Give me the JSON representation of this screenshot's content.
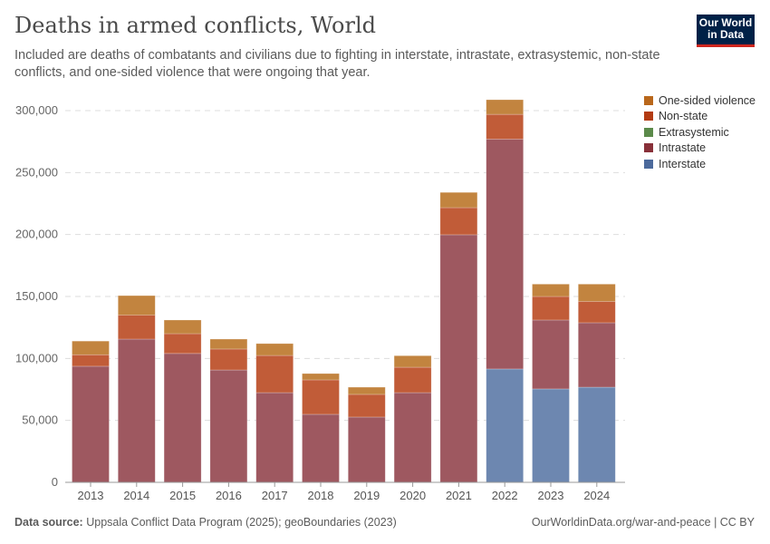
{
  "header": {
    "title": "Deaths in armed conflicts, World",
    "subtitle": "Included are deaths of combatants and civilians due to fighting in interstate, intrastate, extrasystemic, non-state conflicts, and one-sided violence that were ongoing that year.",
    "logo": "Our World in Data"
  },
  "footer": {
    "source_label": "Data source:",
    "source": "Uppsala Conflict Data Program (2025); geoBoundaries (2023)",
    "link": "OurWorldinData.org/war-and-peace | CC BY"
  },
  "chart_data": {
    "type": "bar",
    "stacked": true,
    "categories": [
      "2013",
      "2014",
      "2015",
      "2016",
      "2017",
      "2018",
      "2019",
      "2020",
      "2021",
      "2022",
      "2023",
      "2024"
    ],
    "ylim": [
      0,
      300000
    ],
    "yticks": [
      0,
      50000,
      100000,
      150000,
      200000,
      250000,
      300000
    ],
    "ytick_labels": [
      "0",
      "50,000",
      "100,000",
      "150,000",
      "200,000",
      "250,000",
      "300,000"
    ],
    "grid": true,
    "legend_position": "top-right",
    "series": [
      {
        "name": "Interstate",
        "color": "#6d87b0",
        "values": [
          0,
          0,
          0,
          0,
          0,
          0,
          0,
          0,
          0,
          91500,
          75400,
          76800
        ]
      },
      {
        "name": "Intrastate",
        "color": "#9e5860",
        "values": [
          93700,
          115600,
          104000,
          90700,
          72400,
          54900,
          52700,
          72400,
          199800,
          185500,
          55600,
          52000
        ]
      },
      {
        "name": "Extrasystemic",
        "color": "#5b8a4a",
        "values": [
          0,
          0,
          0,
          0,
          0,
          0,
          0,
          0,
          0,
          0,
          0,
          0
        ]
      },
      {
        "name": "Non-state",
        "color": "#c15c38",
        "values": [
          9300,
          19400,
          16000,
          16900,
          30000,
          27800,
          18300,
          20500,
          21900,
          20000,
          19000,
          17200
        ]
      },
      {
        "name": "One-sided violence",
        "color": "#c2843f",
        "values": [
          11000,
          15700,
          11000,
          8000,
          9600,
          5100,
          5800,
          9300,
          12300,
          11800,
          10000,
          14000
        ]
      }
    ],
    "legend_order": [
      "One-sided violence",
      "Non-state",
      "Extrasystemic",
      "Intrastate",
      "Interstate"
    ],
    "legend_colors": {
      "One-sided violence": "#b9671b",
      "Non-state": "#b33b12",
      "Extrasystemic": "#5b8a4a",
      "Intrastate": "#883039",
      "Interstate": "#4c6a9c"
    }
  }
}
